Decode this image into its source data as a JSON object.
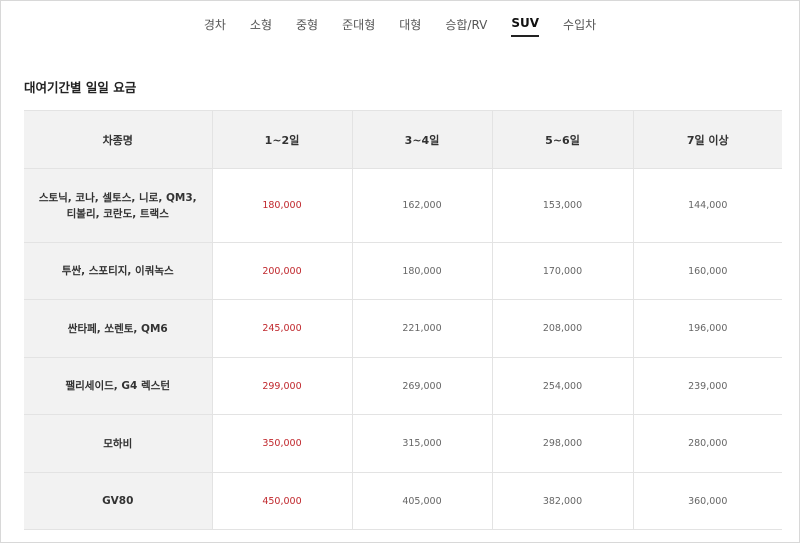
{
  "tabs": [
    {
      "label": "경차",
      "active": false
    },
    {
      "label": "소형",
      "active": false
    },
    {
      "label": "중형",
      "active": false
    },
    {
      "label": "준대형",
      "active": false
    },
    {
      "label": "대형",
      "active": false
    },
    {
      "label": "승합/RV",
      "active": false
    },
    {
      "label": "SUV",
      "active": true
    },
    {
      "label": "수입차",
      "active": false
    }
  ],
  "section_title": "대여기간별 일일 요금",
  "table": {
    "headers": [
      "차종명",
      "1~2일",
      "3~4일",
      "5~6일",
      "7일 이상"
    ],
    "rows": [
      {
        "model": "스토닉, 코나, 셀토스, 니로, QM3,\n티볼리, 코란도, 트랙스",
        "prices": [
          "180,000",
          "162,000",
          "153,000",
          "144,000"
        ]
      },
      {
        "model": "투싼, 스포티지, 이쿼녹스",
        "prices": [
          "200,000",
          "180,000",
          "170,000",
          "160,000"
        ]
      },
      {
        "model": "싼타페, 쏘렌토, QM6",
        "prices": [
          "245,000",
          "221,000",
          "208,000",
          "196,000"
        ]
      },
      {
        "model": "팰리세이드, G4 렉스턴",
        "prices": [
          "299,000",
          "269,000",
          "254,000",
          "239,000"
        ]
      },
      {
        "model": "모하비",
        "prices": [
          "350,000",
          "315,000",
          "298,000",
          "280,000"
        ]
      },
      {
        "model": "GV80",
        "prices": [
          "450,000",
          "405,000",
          "382,000",
          "360,000"
        ]
      }
    ]
  },
  "colors": {
    "highlight_price": "#c0282d",
    "header_bg": "#f2f2f2",
    "active_tab_underline": "#222222"
  }
}
